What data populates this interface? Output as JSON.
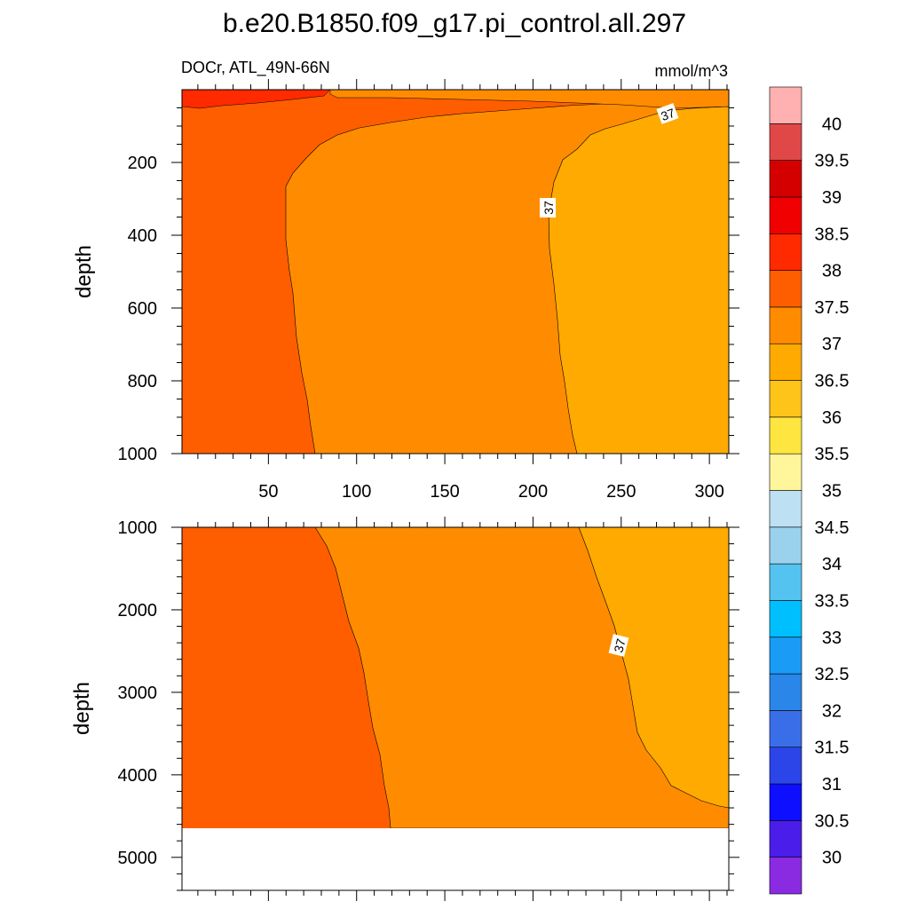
{
  "chart_data": {
    "type": "heatmap",
    "title": "b.e20.B1850.f09_g17.pi_control.all.297",
    "left_label": "DOCr, ATL_49N-66N",
    "units_label": "mmol/m^3",
    "colorbar": {
      "levels": [
        "30",
        "30.5",
        "31",
        "31.5",
        "32",
        "32.5",
        "33",
        "33.5",
        "34",
        "34.5",
        "35",
        "35.5",
        "36",
        "36.5",
        "37",
        "37.5",
        "38",
        "38.5",
        "39",
        "39.5",
        "40"
      ],
      "colors": [
        "#8a2be2",
        "#4a1ee8",
        "#0f0fff",
        "#2b45e8",
        "#3a6ee8",
        "#2a86e8",
        "#1a9cf5",
        "#00bfff",
        "#55c3f0",
        "#9ad2ee",
        "#bde0f2",
        "#fff59a",
        "#ffe540",
        "#ffc41a",
        "#ffaa00",
        "#ff8c00",
        "#ff5e00",
        "#ff2a00",
        "#f00000",
        "#d40000",
        "#e04848",
        "#ffb0b0"
      ]
    },
    "panels": [
      {
        "name": "upper",
        "ylabel": "depth",
        "ylim": [
          0,
          1000
        ],
        "yticks": [
          "200",
          "400",
          "600",
          "800",
          "1000"
        ],
        "xlim": [
          1,
          311
        ],
        "xticks": [
          "50",
          "100",
          "150",
          "200",
          "250",
          "300"
        ],
        "contour_label": "37",
        "regions": [
          {
            "level": "37.5-38",
            "color": "#ff5e00"
          },
          {
            "level": "37-37.5",
            "color": "#ff8c00"
          },
          {
            "level": "36.5-37",
            "color": "#ffaa00"
          },
          {
            "level": "38-38.5",
            "color": "#ff2a00"
          }
        ]
      },
      {
        "name": "lower",
        "ylabel": "depth",
        "ylim": [
          1000,
          5400
        ],
        "yticks": [
          "1000",
          "2000",
          "3000",
          "4000",
          "5000"
        ],
        "xlim": [
          1,
          311
        ],
        "contour_label": "37",
        "ocean_floor_depth": 4620,
        "regions": [
          {
            "level": "37.5-38",
            "color": "#ff5e00"
          },
          {
            "level": "37-37.5",
            "color": "#ff8c00"
          },
          {
            "level": "36.5-37",
            "color": "#ffaa00"
          }
        ]
      }
    ]
  }
}
